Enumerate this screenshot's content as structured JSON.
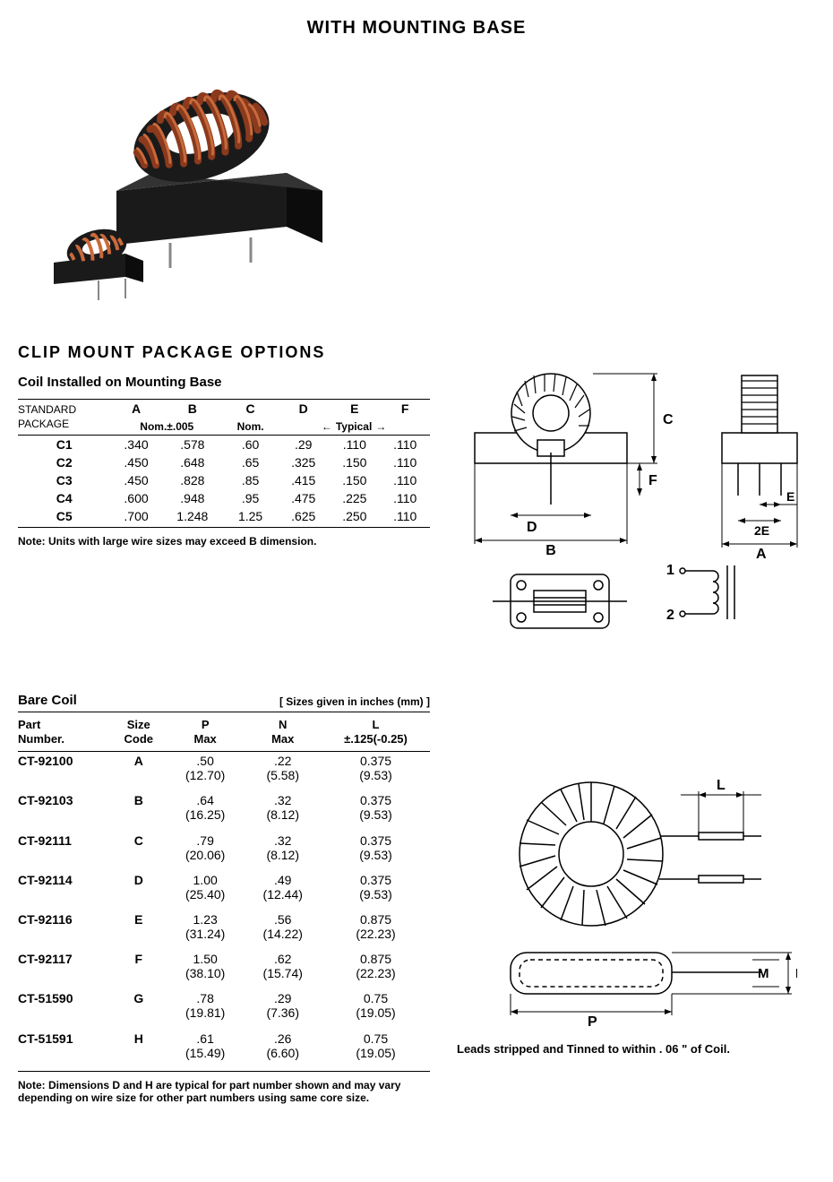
{
  "title": "WITH MOUNTING BASE",
  "section1": {
    "heading": "CLIP MOUNT  PACKAGE OPTIONS",
    "subheading": "Coil Installed on Mounting Base",
    "std_pkg_label_l1": "STANDARD",
    "std_pkg_label_l2": "PACKAGE",
    "cols": [
      "A",
      "B",
      "C",
      "D",
      "E",
      "F"
    ],
    "sub_ab": "Nom.±.005",
    "sub_c": "Nom.",
    "sub_def": "Typical",
    "rows": [
      {
        "pkg": "C1",
        "a": ".340",
        "b": ".578",
        "c": ".60",
        "d": ".29",
        "e": ".110",
        "f": ".110"
      },
      {
        "pkg": "C2",
        "a": ".450",
        "b": ".648",
        "c": ".65",
        "d": ".325",
        "e": ".150",
        "f": ".110"
      },
      {
        "pkg": "C3",
        "a": ".450",
        "b": ".828",
        "c": ".85",
        "d": ".415",
        "e": ".150",
        "f": ".110"
      },
      {
        "pkg": "C4",
        "a": ".600",
        "b": ".948",
        "c": ".95",
        "d": ".475",
        "e": ".225",
        "f": ".110"
      },
      {
        "pkg": "C5",
        "a": ".700",
        "b": "1.248",
        "c": "1.25",
        "d": ".625",
        "e": ".250",
        "f": ".110"
      }
    ],
    "note": "Note: Units with large wire sizes may exceed B dimension."
  },
  "section2": {
    "heading": "Bare Coil",
    "sizes_note": "[ Sizes given in inches (mm) ]",
    "head_part": "Part\nNumber.",
    "head_size": "Size\nCode",
    "head_p": "P\nMax",
    "head_n": "N\nMax",
    "head_l": "L\n±.125(-0.25)",
    "rows": [
      {
        "part": "CT-92100",
        "code": "A",
        "p_in": ".50",
        "p_mm": "(12.70)",
        "n_in": ".22",
        "n_mm": "(5.58)",
        "l_in": "0.375",
        "l_mm": "(9.53)"
      },
      {
        "part": "CT-92103",
        "code": "B",
        "p_in": ".64",
        "p_mm": "(16.25)",
        "n_in": ".32",
        "n_mm": "(8.12)",
        "l_in": "0.375",
        "l_mm": "(9.53)"
      },
      {
        "part": "CT-92111",
        "code": "C",
        "p_in": ".79",
        "p_mm": "(20.06)",
        "n_in": ".32",
        "n_mm": "(8.12)",
        "l_in": "0.375",
        "l_mm": "(9.53)"
      },
      {
        "part": "CT-92114",
        "code": "D",
        "p_in": "1.00",
        "p_mm": "(25.40)",
        "n_in": ".49",
        "n_mm": "(12.44)",
        "l_in": "0.375",
        "l_mm": "(9.53)"
      },
      {
        "part": "CT-92116",
        "code": "E",
        "p_in": "1.23",
        "p_mm": "(31.24)",
        "n_in": ".56",
        "n_mm": "(14.22)",
        "l_in": "0.875",
        "l_mm": "(22.23)"
      },
      {
        "part": "CT-92117",
        "code": "F",
        "p_in": "1.50",
        "p_mm": "(38.10)",
        "n_in": ".62",
        "n_mm": "(15.74)",
        "l_in": "0.875",
        "l_mm": "(22.23)"
      },
      {
        "part": "CT-51590",
        "code": "G",
        "p_in": ".78",
        "p_mm": "(19.81)",
        "n_in": ".29",
        "n_mm": "(7.36)",
        "l_in": "0.75",
        "l_mm": "(19.05)"
      },
      {
        "part": "CT-51591",
        "code": "H",
        "p_in": ".61",
        "p_mm": "(15.49)",
        "n_in": ".26",
        "n_mm": "(6.60)",
        "l_in": "0.75",
        "l_mm": "(19.05)"
      }
    ],
    "note": "Note: Dimensions D and H are typical for part number shown and may vary depending on wire size for other part numbers using same core size."
  },
  "diagrams": {
    "top_labels": {
      "B": "B",
      "C": "C",
      "D": "D",
      "F": "F",
      "A": "A",
      "E": "E",
      "E2": "2E",
      "pin1": "1",
      "pin2": "2"
    },
    "bottom_labels": {
      "L": "L",
      "P": "P",
      "M": "M",
      "N": "N"
    },
    "caption": "Leads stripped and Tinned to within . 06 \" of Coil."
  },
  "hero_colors": {
    "base": "#1a1a1a",
    "copper1": "#8b3a1e",
    "copper2": "#c96a3a",
    "pin": "#888888"
  }
}
